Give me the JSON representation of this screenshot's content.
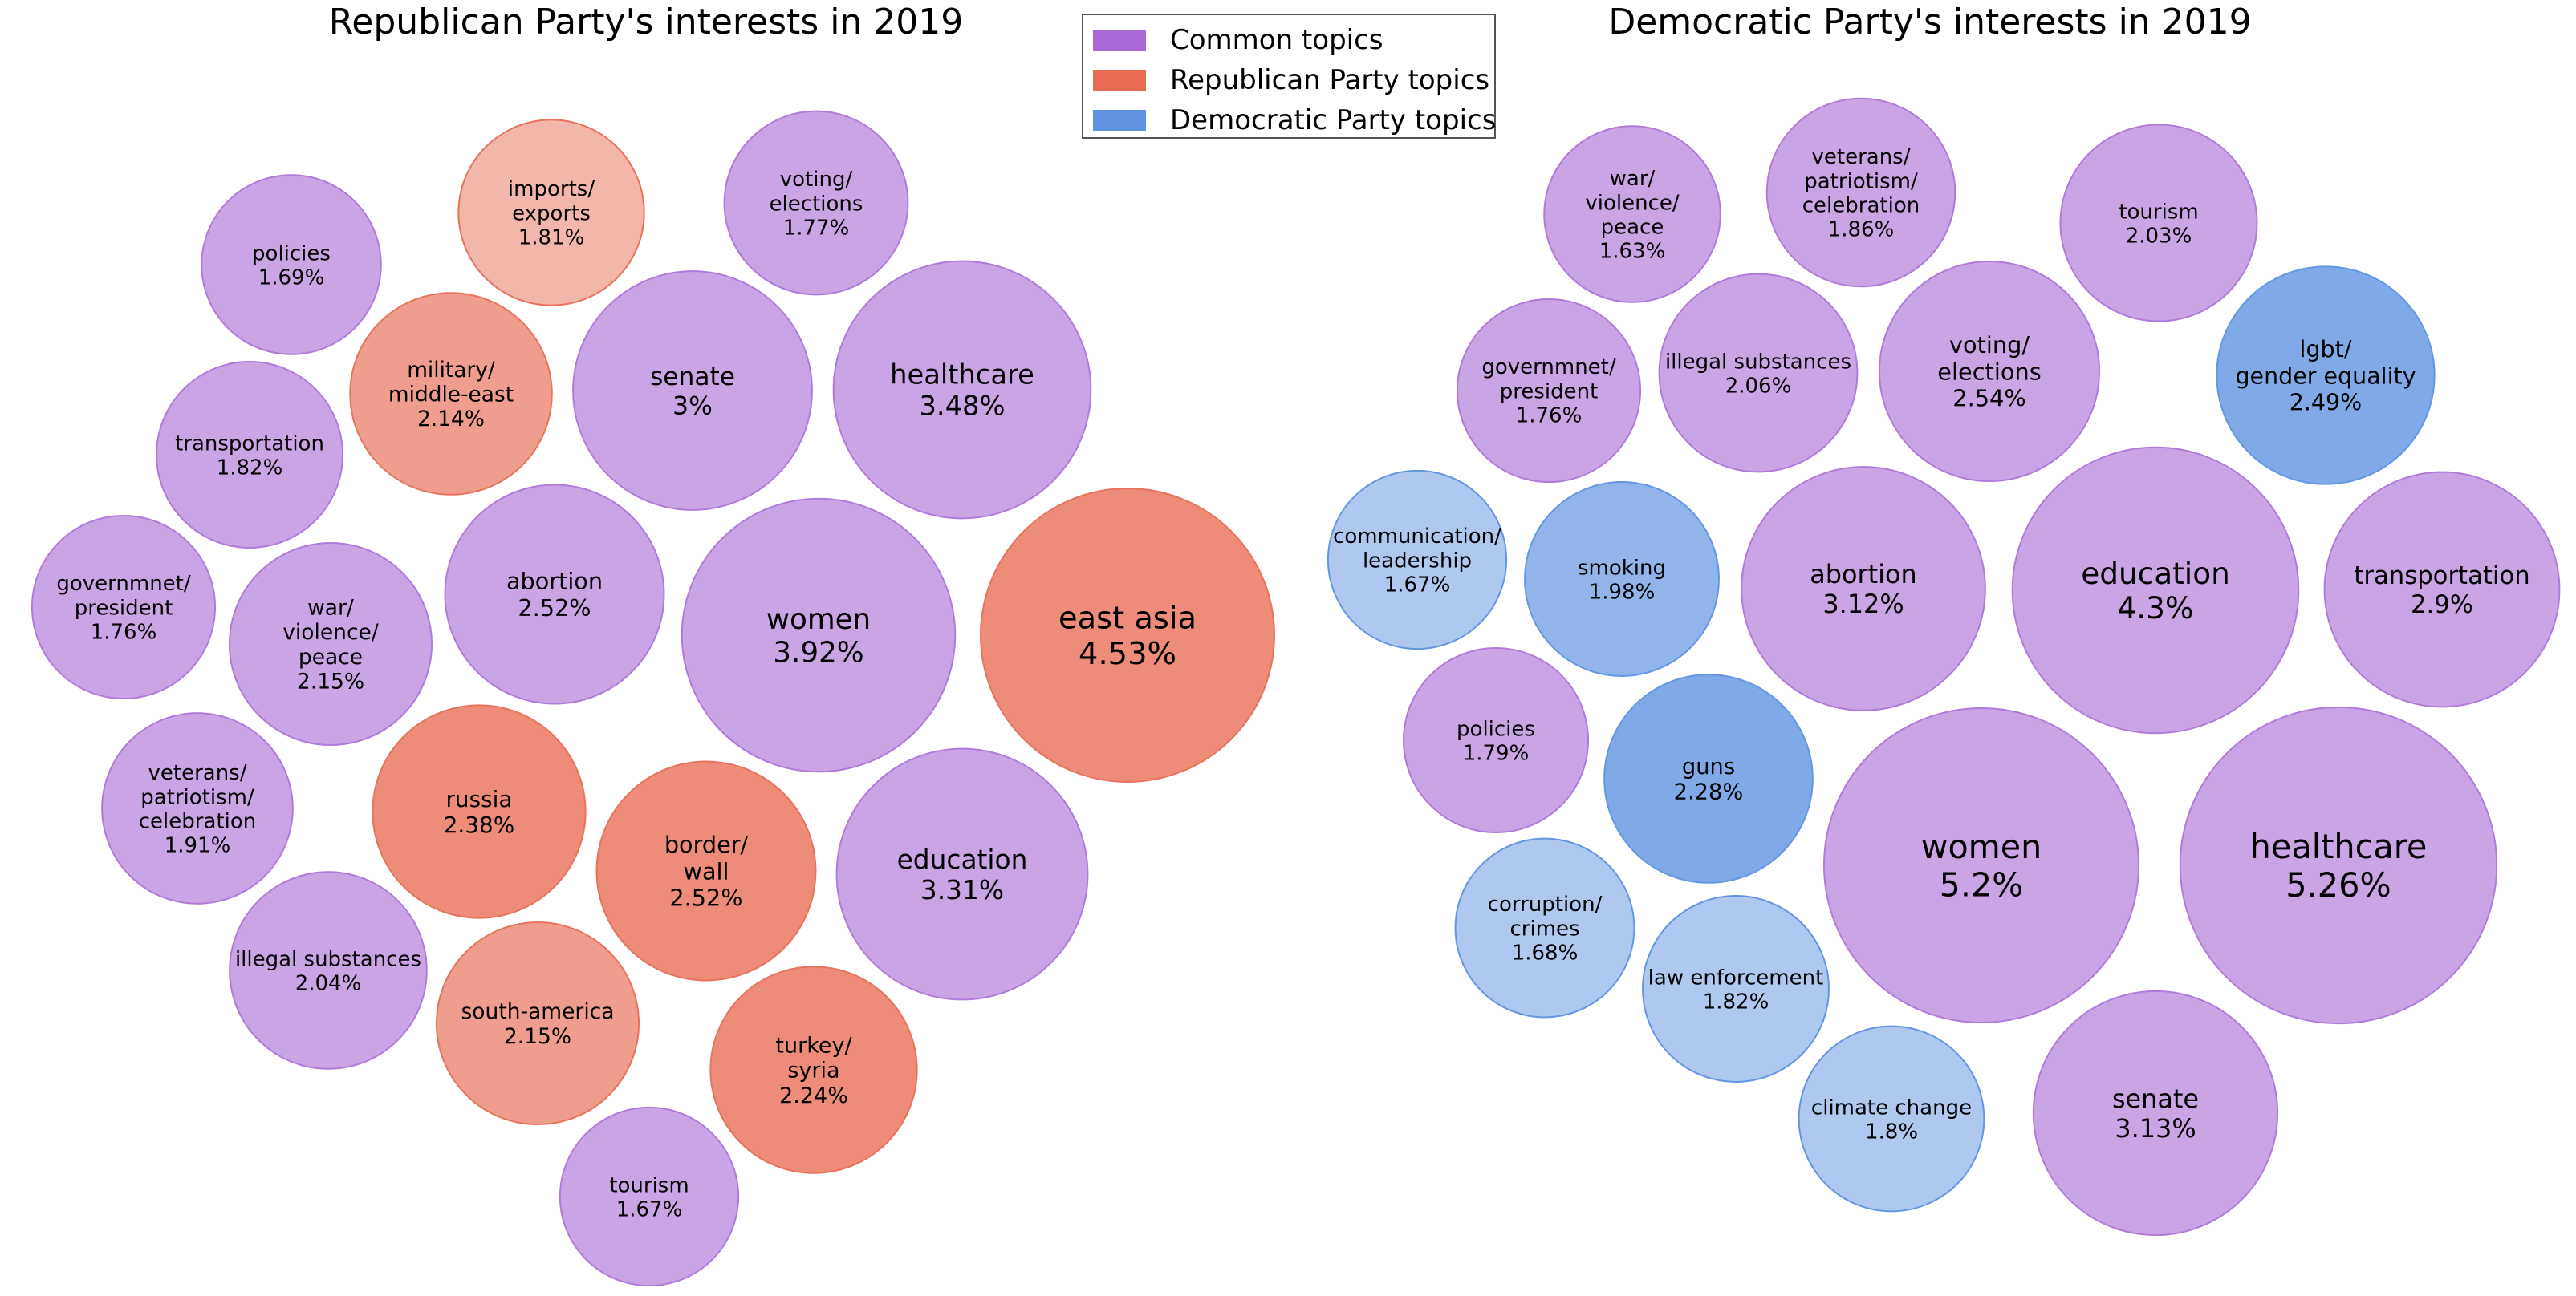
{
  "colors": {
    "Common": "#b07ada",
    "Republican": "#e8735c",
    "Democratic": "#6396e2"
  },
  "legend": [
    {
      "label": "Common topics",
      "color": "#a968d6"
    },
    {
      "label": "Republican Party topics",
      "color": "#e76a53"
    },
    {
      "label": "Democratic Party topics",
      "color": "#6093df"
    }
  ],
  "chart_data": [
    {
      "type": "bubble",
      "title": "Republican Party's interests in 2019",
      "unit": "%",
      "series": [
        {
          "label": "east asia",
          "value": 4.53,
          "group": "Republican"
        },
        {
          "label": "women",
          "value": 3.92,
          "group": "Common"
        },
        {
          "label": "healthcare",
          "value": 3.48,
          "group": "Common"
        },
        {
          "label": "education",
          "value": 3.31,
          "group": "Common"
        },
        {
          "label": "senate",
          "value": 3.0,
          "group": "Common"
        },
        {
          "label": "abortion",
          "value": 2.52,
          "group": "Common"
        },
        {
          "label": "border/\nwall",
          "value": 2.52,
          "group": "Republican"
        },
        {
          "label": "russia",
          "value": 2.38,
          "group": "Republican"
        },
        {
          "label": "turkey/\nsyria",
          "value": 2.24,
          "group": "Republican"
        },
        {
          "label": "war/\nviolence/\npeace",
          "value": 2.15,
          "group": "Common"
        },
        {
          "label": "south-america",
          "value": 2.15,
          "group": "Republican"
        },
        {
          "label": "military/\nmiddle-east",
          "value": 2.14,
          "group": "Republican"
        },
        {
          "label": "illegal substances",
          "value": 2.04,
          "group": "Common"
        },
        {
          "label": "veterans/\npatriotism/\ncelebration",
          "value": 1.91,
          "group": "Common"
        },
        {
          "label": "transportation",
          "value": 1.82,
          "group": "Common"
        },
        {
          "label": "imports/\nexports",
          "value": 1.81,
          "group": "Republican"
        },
        {
          "label": "voting/\nelections",
          "value": 1.77,
          "group": "Common"
        },
        {
          "label": "governmnet/\npresident",
          "value": 1.76,
          "group": "Common"
        },
        {
          "label": "policies",
          "value": 1.69,
          "group": "Common"
        },
        {
          "label": "tourism",
          "value": 1.67,
          "group": "Common"
        }
      ]
    },
    {
      "type": "bubble",
      "title": "Democratic Party's interests in 2019",
      "unit": "%",
      "series": [
        {
          "label": "healthcare",
          "value": 5.26,
          "group": "Common"
        },
        {
          "label": "women",
          "value": 5.2,
          "group": "Common"
        },
        {
          "label": "education",
          "value": 4.3,
          "group": "Common"
        },
        {
          "label": "senate",
          "value": 3.13,
          "group": "Common"
        },
        {
          "label": "abortion",
          "value": 3.12,
          "group": "Common"
        },
        {
          "label": "transportation",
          "value": 2.9,
          "group": "Common"
        },
        {
          "label": "voting/\nelections",
          "value": 2.54,
          "group": "Common"
        },
        {
          "label": "lgbt/\ngender equality",
          "value": 2.49,
          "group": "Democratic"
        },
        {
          "label": "guns",
          "value": 2.28,
          "group": "Democratic"
        },
        {
          "label": "illegal substances",
          "value": 2.06,
          "group": "Common"
        },
        {
          "label": "tourism",
          "value": 2.03,
          "group": "Common"
        },
        {
          "label": "smoking",
          "value": 1.98,
          "group": "Democratic"
        },
        {
          "label": "veterans/\npatriotism/\ncelebration",
          "value": 1.86,
          "group": "Common"
        },
        {
          "label": "law enforcement",
          "value": 1.82,
          "group": "Democratic"
        },
        {
          "label": "climate change",
          "value": 1.8,
          "group": "Democratic"
        },
        {
          "label": "policies",
          "value": 1.79,
          "group": "Common"
        },
        {
          "label": "governmnet/\npresident",
          "value": 1.76,
          "group": "Common"
        },
        {
          "label": "corruption/\ncrimes",
          "value": 1.68,
          "group": "Democratic"
        },
        {
          "label": "communication/\nleadership",
          "value": 1.67,
          "group": "Democratic"
        },
        {
          "label": "war/\nviolence/\npeace",
          "value": 1.63,
          "group": "Common"
        }
      ]
    }
  ]
}
